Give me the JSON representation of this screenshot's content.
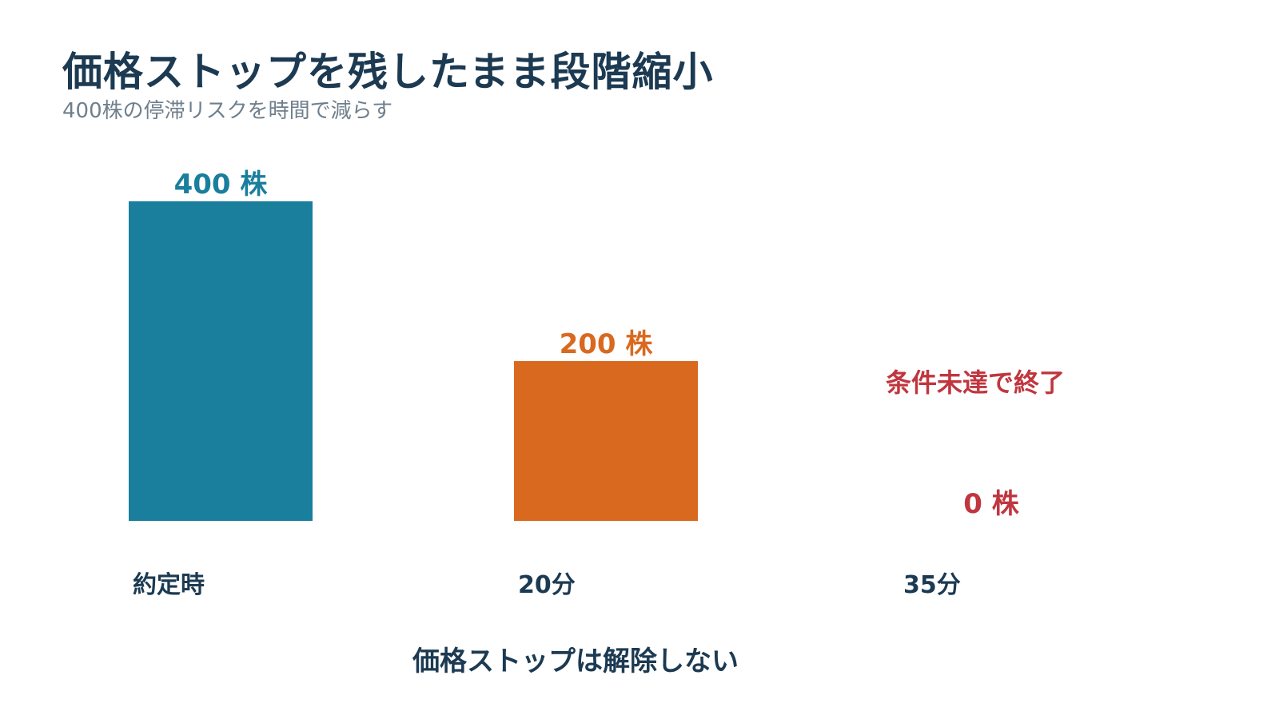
{
  "chart_data": {
    "type": "bar",
    "title": "価格ストップを残したまま段階縮小",
    "subtitle": "400株の停滞リスクを時間で減らす",
    "categories": [
      "約定時",
      "20分",
      "35分"
    ],
    "values": [
      400,
      200,
      0
    ],
    "value_labels": [
      "400 株",
      "200 株",
      "0 株"
    ],
    "ylim": [
      0,
      400
    ],
    "grid": false,
    "annotation": "条件未達で終了",
    "footnote": "価格ストップは解除しない"
  },
  "colors": {
    "title": "#1c3a52",
    "subtitle": "#6f7f8c",
    "bars": [
      "#1a7e9d",
      "#d9691f",
      "#c0363f"
    ],
    "annotation": "#c0363f"
  }
}
